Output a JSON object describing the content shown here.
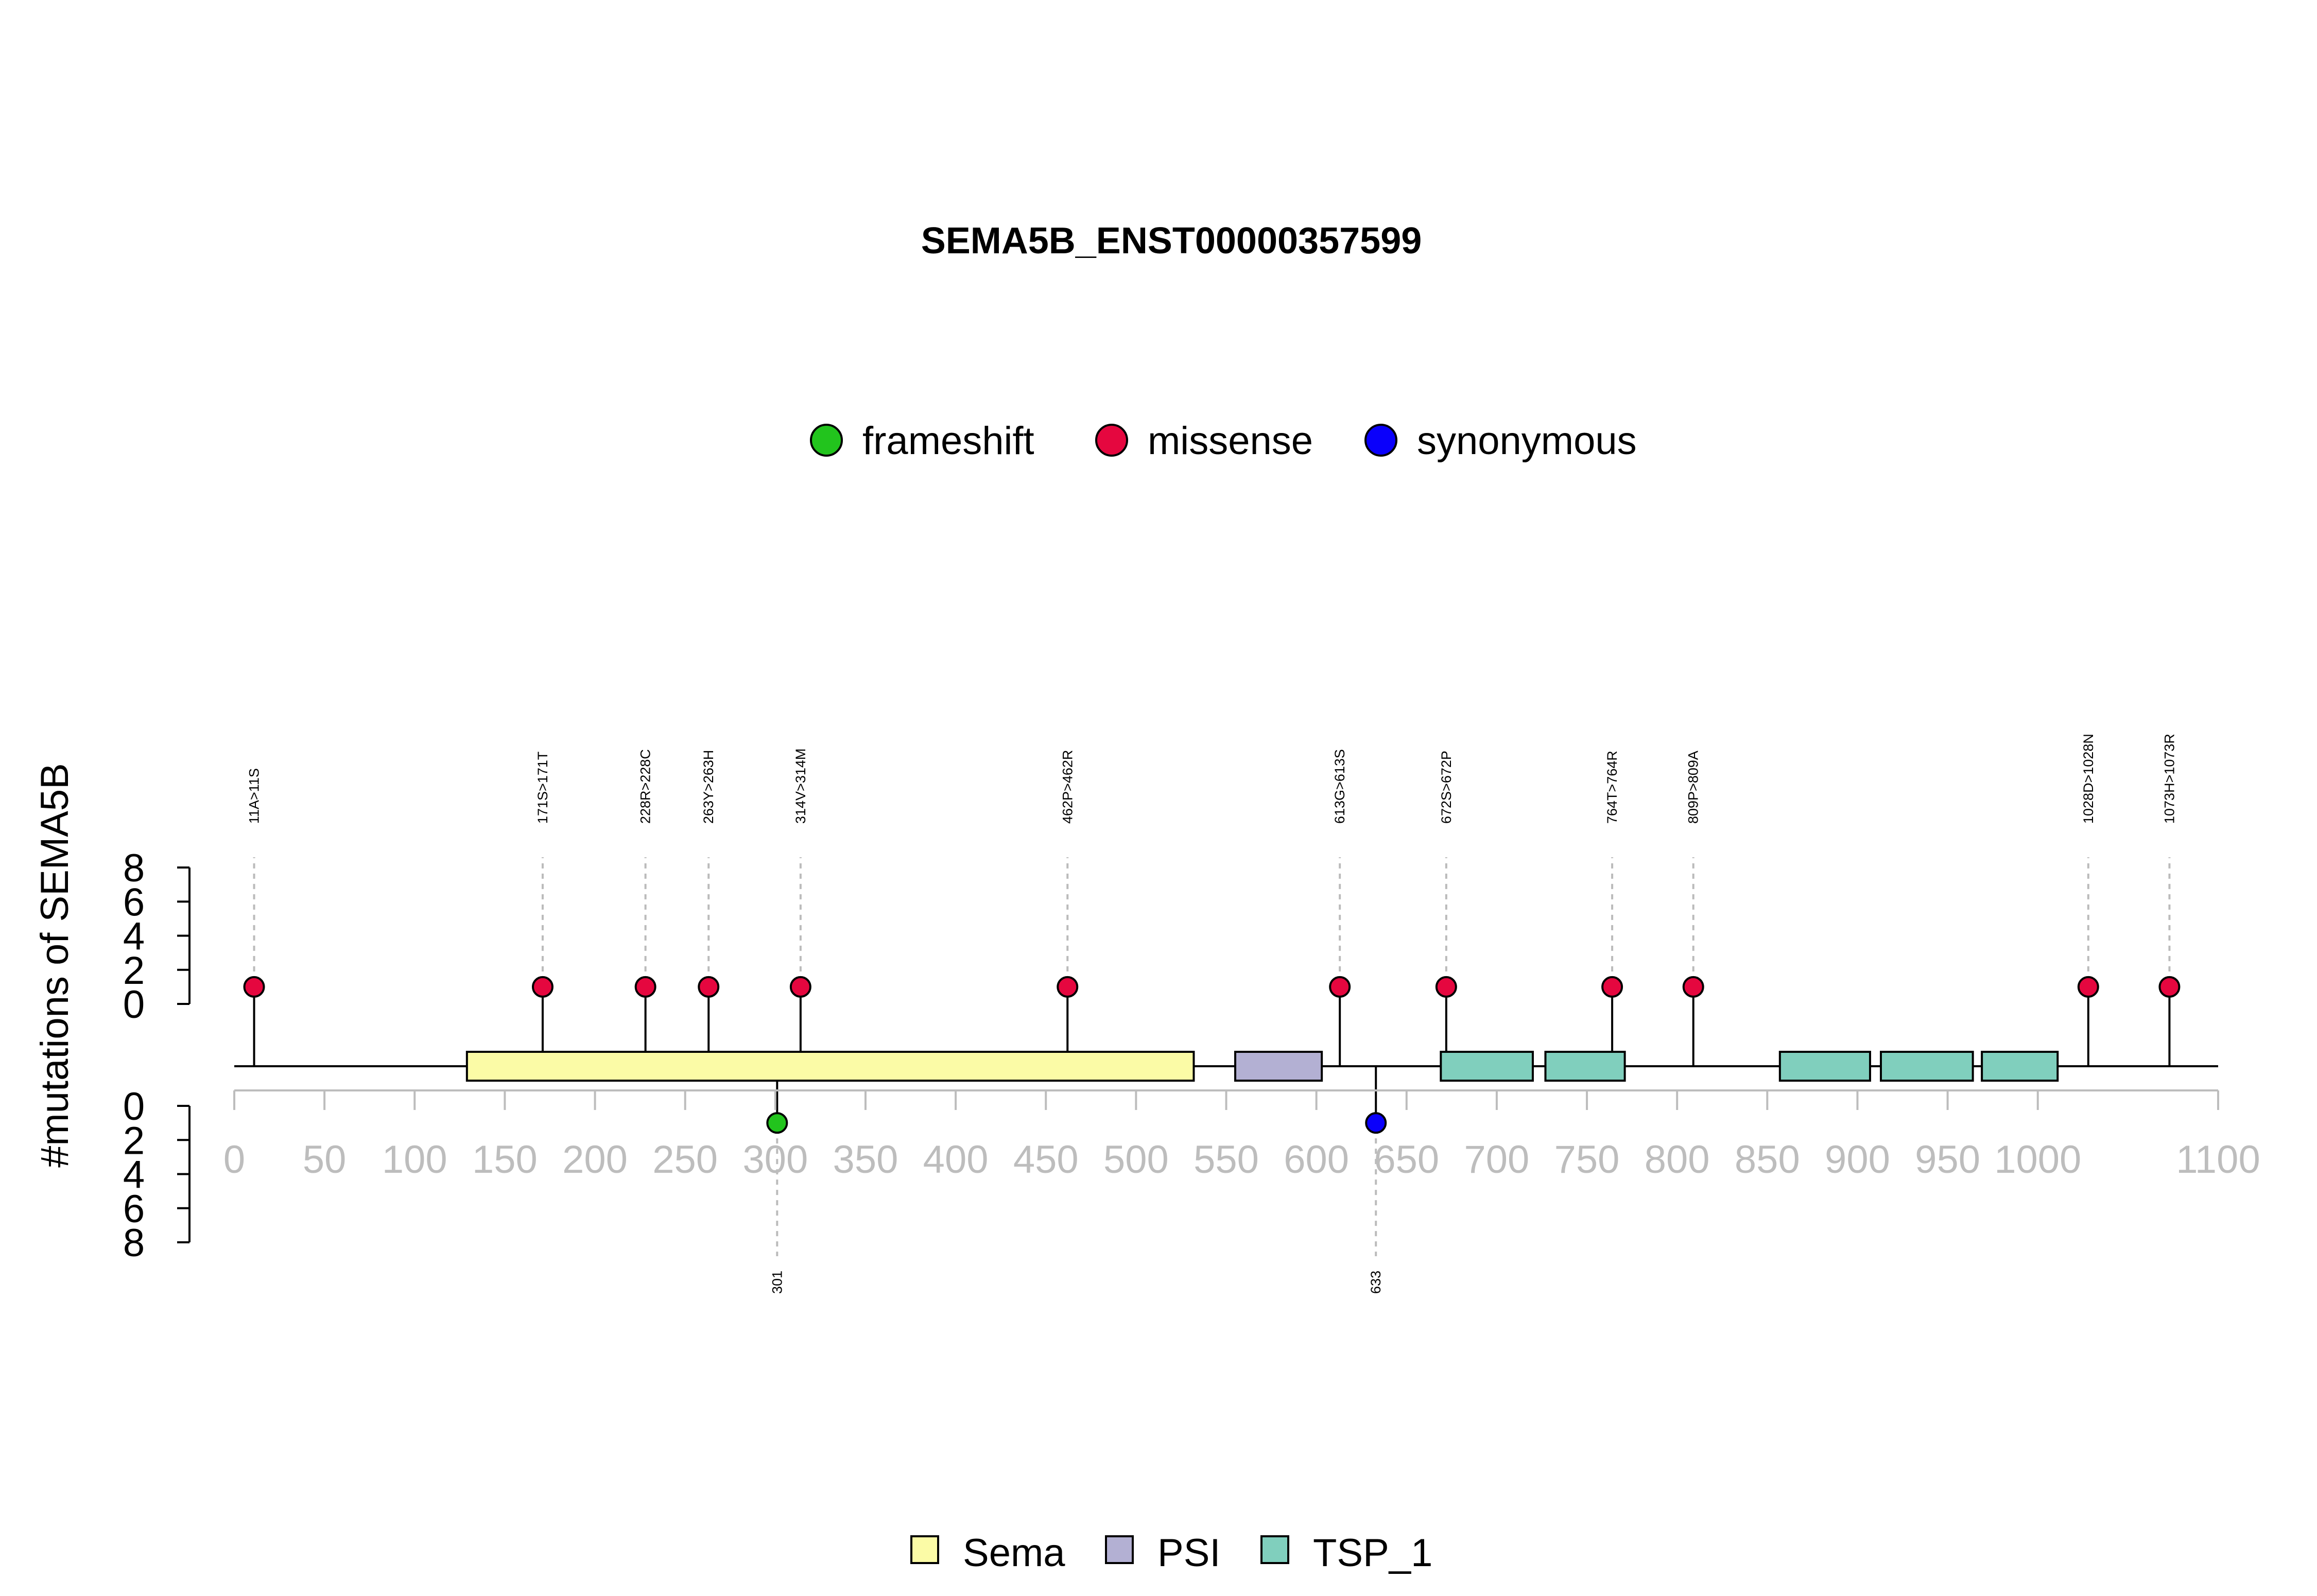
{
  "chart_data": {
    "type": "lollipop",
    "title": "SEMA5B_ENST00000357599",
    "ylabel": "#mutations of SEMA5B",
    "xlim": [
      0,
      1100
    ],
    "x_ticks": [
      0,
      50,
      100,
      150,
      200,
      250,
      300,
      350,
      400,
      450,
      500,
      550,
      600,
      650,
      700,
      750,
      800,
      850,
      900,
      950,
      1000,
      1100
    ],
    "ylim_top": [
      0,
      8
    ],
    "ylim_bottom": [
      0,
      8
    ],
    "y_ticks_top": [
      0,
      2,
      4,
      6,
      8
    ],
    "y_ticks_bottom": [
      0,
      2,
      4,
      6,
      8
    ],
    "mutation_legend": [
      {
        "label": "frameshift",
        "color": "#22c41d"
      },
      {
        "label": "missense",
        "color": "#e5073f"
      },
      {
        "label": "synonymous",
        "color": "#0a00fb"
      }
    ],
    "domain_legend": [
      {
        "label": "Sema",
        "color": "#fbfba6"
      },
      {
        "label": "PSI",
        "color": "#b3b0d3"
      },
      {
        "label": "TSP_1",
        "color": "#80cfbd"
      }
    ],
    "domains": [
      {
        "name": "Sema",
        "start": 129,
        "end": 532
      },
      {
        "name": "PSI",
        "start": 555,
        "end": 603
      },
      {
        "name": "TSP_1",
        "start": 669,
        "end": 720
      },
      {
        "name": "TSP_1",
        "start": 727,
        "end": 771
      },
      {
        "name": "TSP_1",
        "start": 857,
        "end": 907
      },
      {
        "name": "TSP_1",
        "start": 913,
        "end": 964
      },
      {
        "name": "TSP_1",
        "start": 969,
        "end": 1011
      }
    ],
    "mutations_top": [
      {
        "pos": 11,
        "label": "11A>11S",
        "count": 1,
        "type": "missense"
      },
      {
        "pos": 171,
        "label": "171S>171T",
        "count": 1,
        "type": "missense"
      },
      {
        "pos": 228,
        "label": "228R>228C",
        "count": 1,
        "type": "missense"
      },
      {
        "pos": 263,
        "label": "263Y>263H",
        "count": 1,
        "type": "missense"
      },
      {
        "pos": 314,
        "label": "314V>314M",
        "count": 1,
        "type": "missense"
      },
      {
        "pos": 462,
        "label": "462P>462R",
        "count": 1,
        "type": "missense"
      },
      {
        "pos": 613,
        "label": "613G>613S",
        "count": 1,
        "type": "missense"
      },
      {
        "pos": 672,
        "label": "672S>672P",
        "count": 1,
        "type": "missense"
      },
      {
        "pos": 764,
        "label": "764T>764R",
        "count": 1,
        "type": "missense"
      },
      {
        "pos": 809,
        "label": "809P>809A",
        "count": 1,
        "type": "missense"
      },
      {
        "pos": 1028,
        "label": "1028D>1028N",
        "count": 1,
        "type": "missense"
      },
      {
        "pos": 1073,
        "label": "1073H>1073R",
        "count": 1,
        "type": "missense"
      }
    ],
    "mutations_bottom": [
      {
        "pos": 301,
        "label": "301",
        "count": 1,
        "type": "frameshift"
      },
      {
        "pos": 633,
        "label": "633",
        "count": 1,
        "type": "synonymous"
      }
    ]
  }
}
